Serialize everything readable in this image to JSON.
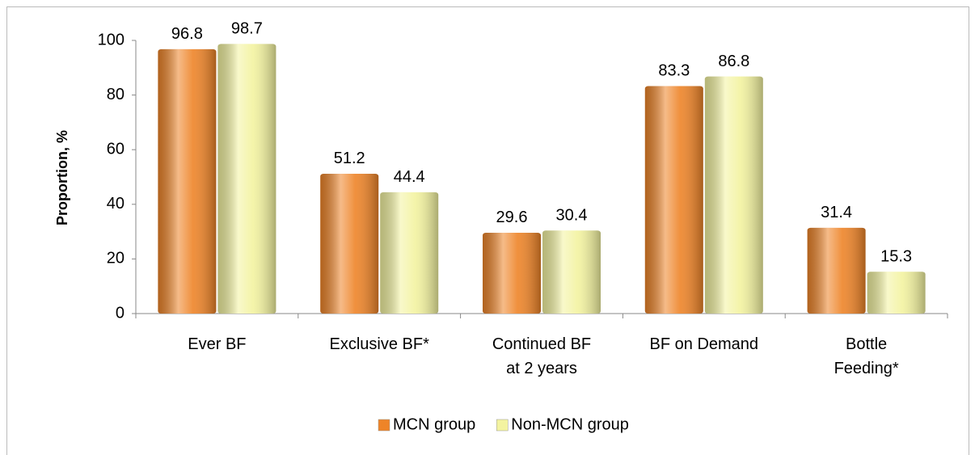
{
  "chart_data": {
    "type": "bar",
    "y_label": "Proportion, %",
    "categories": [
      "Ever BF",
      "Exclusive BF*",
      "Continued BF\nat 2 years",
      "BF on Demand",
      "Bottle\nFeeding*"
    ],
    "series": [
      {
        "name": "MCN group",
        "color": "#ee8428",
        "values": [
          96.8,
          51.2,
          29.6,
          83.3,
          31.4
        ]
      },
      {
        "name": "Non-MCN group",
        "color": "#f3f3a0",
        "values": [
          98.7,
          44.4,
          30.4,
          86.8,
          15.3
        ]
      }
    ],
    "ylim": [
      0,
      100
    ],
    "yticks": [
      0,
      20,
      40,
      60,
      80,
      100
    ],
    "grid": false,
    "legend": "bottom"
  }
}
